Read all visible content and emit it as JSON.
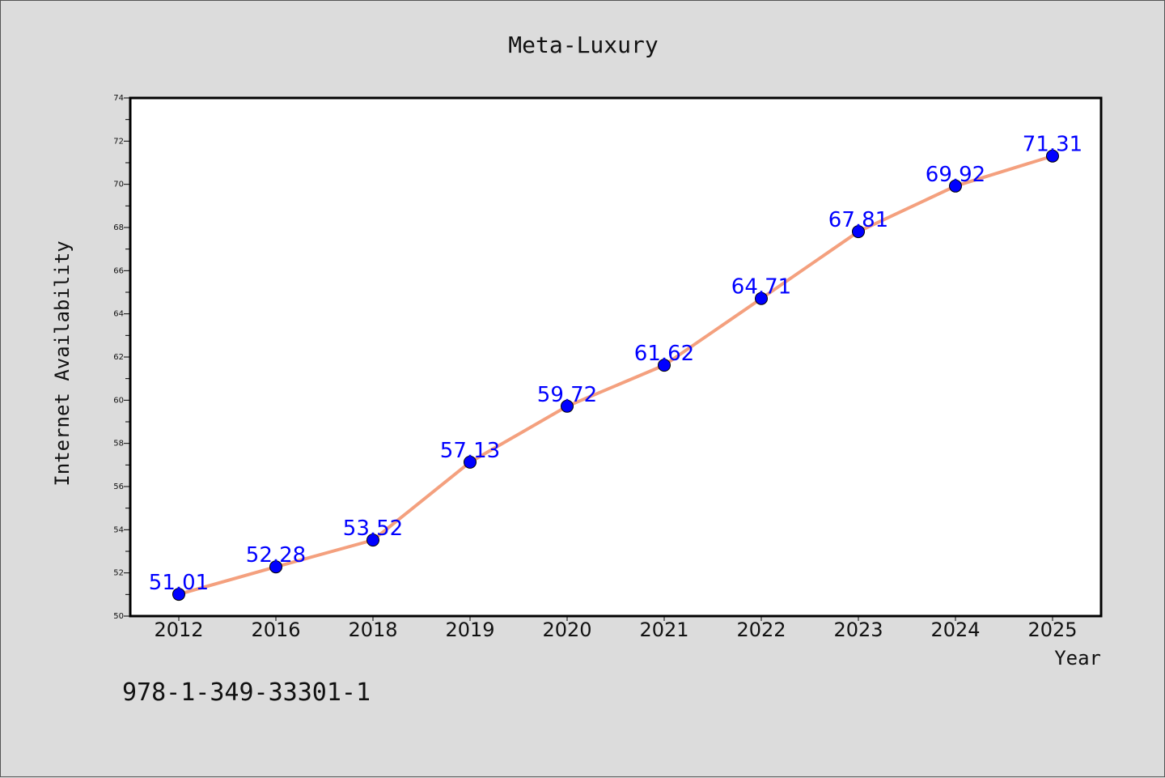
{
  "chart_data": {
    "type": "line",
    "title": "Meta-Luxury",
    "xlabel": "Year",
    "ylabel": "Internet Availability",
    "categories": [
      "2012",
      "2016",
      "2018",
      "2019",
      "2020",
      "2021",
      "2022",
      "2023",
      "2024",
      "2025"
    ],
    "series": [
      {
        "values": [
          51.01,
          52.28,
          53.52,
          57.13,
          59.72,
          61.62,
          64.71,
          67.81,
          69.92,
          71.31
        ]
      }
    ],
    "data_labels": [
      "51.01",
      "52.28",
      "53.52",
      "57.13",
      "59.72",
      "61.62",
      "64.71",
      "67.81",
      "69.92",
      "71.31"
    ],
    "ylim": [
      50,
      74
    ],
    "yticks": [
      50,
      52,
      54,
      56,
      58,
      60,
      62,
      64,
      66,
      68,
      70,
      72,
      74
    ],
    "grid": false,
    "line_color": "#f4a07e",
    "marker_color": "#0000ff",
    "label_color": "#0000ff",
    "annotation": "978-1-349-33301-1"
  }
}
